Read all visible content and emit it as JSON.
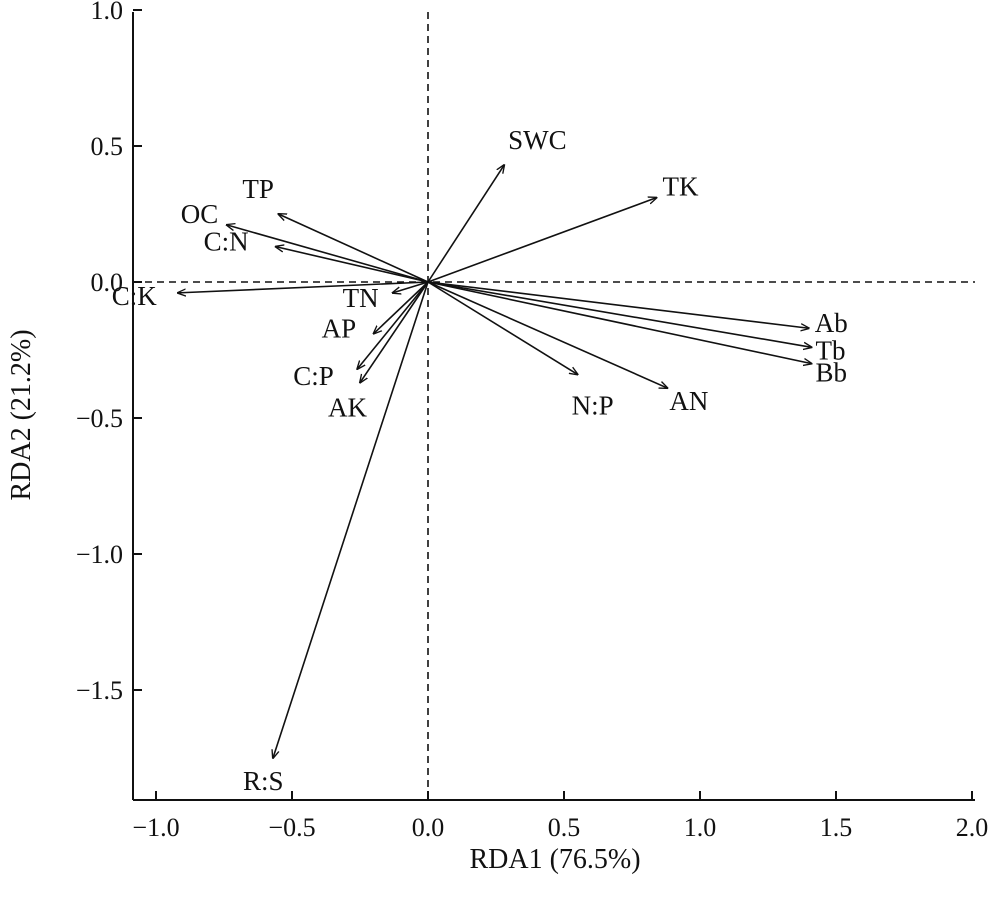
{
  "chart_data": {
    "type": "scatter",
    "subtype": "rda-biplot",
    "title": "",
    "xlabel": "RDA1 (76.5%)",
    "ylabel": "RDA2 (21.2%)",
    "xlim": [
      -1.1,
      2.0
    ],
    "ylim": [
      -1.9,
      1.0
    ],
    "xticks": [
      -1.0,
      -0.5,
      0.0,
      0.5,
      1.0,
      1.5,
      2.0
    ],
    "xtick_labels": [
      "−1.0",
      "−0.5",
      "0.0",
      "0.5",
      "1.0",
      "1.5",
      "2.0"
    ],
    "yticks": [
      1.0,
      0.5,
      0.0,
      -0.5,
      -1.0,
      -1.5
    ],
    "ytick_labels": [
      "1.0",
      "0.5",
      "0.0",
      "−0.5",
      "−1.0",
      "−1.5"
    ],
    "grid": false,
    "reference_lines": [
      {
        "axis": "x",
        "value": 0.0,
        "style": "dashed"
      },
      {
        "axis": "y",
        "value": 0.0,
        "style": "dashed"
      }
    ],
    "vectors": [
      {
        "label": "SWC",
        "x": 0.28,
        "y": 0.43
      },
      {
        "label": "TK",
        "x": 0.84,
        "y": 0.31
      },
      {
        "label": "TP",
        "x": -0.55,
        "y": 0.25
      },
      {
        "label": "OC",
        "x": -0.74,
        "y": 0.21
      },
      {
        "label": "C:N",
        "x": -0.56,
        "y": 0.13
      },
      {
        "label": "C:K",
        "x": -0.92,
        "y": -0.04
      },
      {
        "label": "TN",
        "x": -0.13,
        "y": -0.04
      },
      {
        "label": "AP",
        "x": -0.2,
        "y": -0.19
      },
      {
        "label": "C:P",
        "x": -0.26,
        "y": -0.32
      },
      {
        "label": "AK",
        "x": -0.25,
        "y": -0.37
      },
      {
        "label": "R:S",
        "x": -0.57,
        "y": -1.75
      },
      {
        "label": "N:P",
        "x": 0.55,
        "y": -0.34
      },
      {
        "label": "AN",
        "x": 0.88,
        "y": -0.39
      },
      {
        "label": "Ab",
        "x": 1.4,
        "y": -0.17
      },
      {
        "label": "Tb",
        "x": 1.41,
        "y": -0.24
      },
      {
        "label": "Bb",
        "x": 1.41,
        "y": -0.3
      }
    ]
  }
}
